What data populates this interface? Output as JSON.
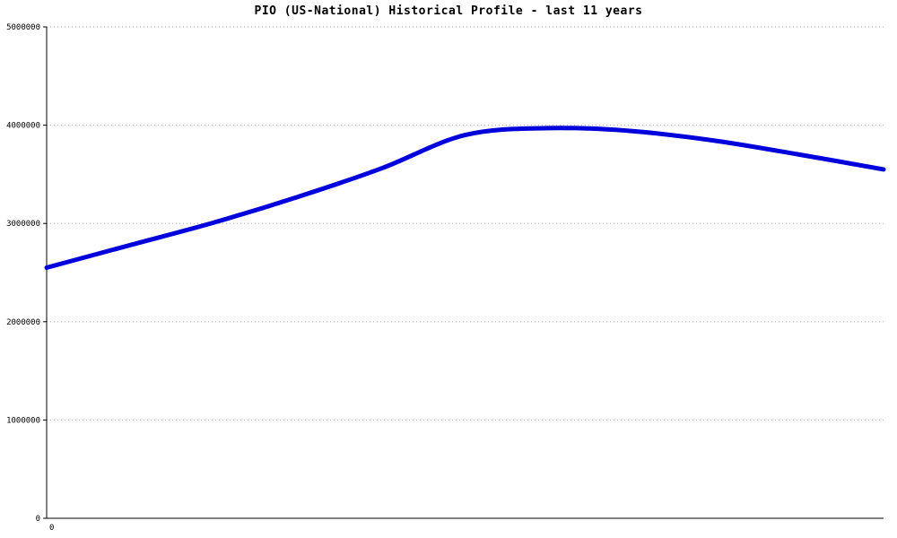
{
  "title": "PIO (US-National) Historical Profile - last 11 years",
  "colors": {
    "line": "#0000dd",
    "axis": "#000000",
    "grid": "#aaaaaa",
    "tick_label": "#000000",
    "background": "#ffffff"
  },
  "chart_data": {
    "type": "line",
    "title": "PIO (US-National) Historical Profile - last 11 years",
    "xlabel": "",
    "ylabel": "",
    "x": [
      0,
      1,
      2,
      3,
      4,
      5,
      6,
      7,
      8,
      9,
      10
    ],
    "series": [
      {
        "name": "PIO",
        "values": [
          2550000,
          2780000,
          3010000,
          3270000,
          3560000,
          3900000,
          3970000,
          3940000,
          3840000,
          3700000,
          3550000
        ]
      }
    ],
    "ylim": [
      0,
      5000000
    ],
    "yticks": [
      0,
      1000000,
      2000000,
      3000000,
      4000000,
      5000000
    ],
    "ytick_labels": [
      "0",
      "1000000",
      "2000000",
      "3000000",
      "4000000",
      "5000000"
    ],
    "xtick_labels": [
      "0"
    ],
    "grid": "horizontal-dotted",
    "legend": "none",
    "line_width": 5
  }
}
